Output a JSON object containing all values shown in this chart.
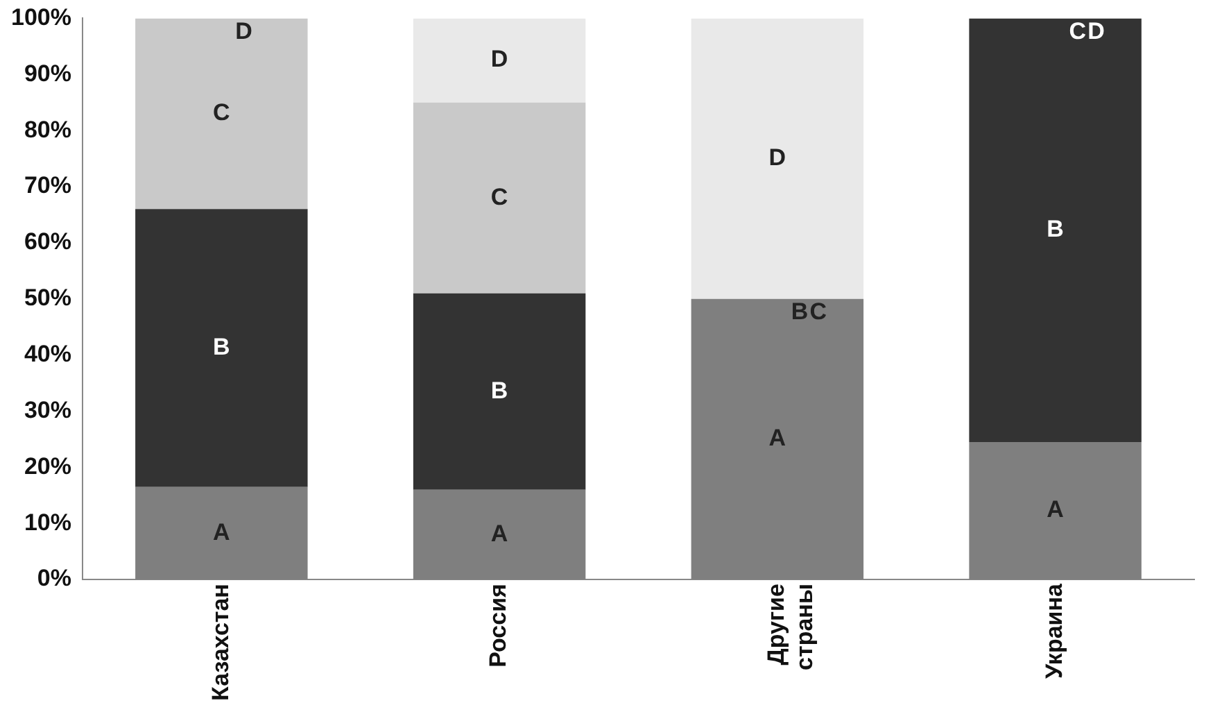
{
  "chart_data": {
    "type": "bar",
    "stacked": true,
    "categories": [
      "Казахстан",
      "Россия",
      "Другие страны",
      "Украина"
    ],
    "series": [
      {
        "name": "A",
        "color": "#7f7f7f",
        "values": [
          16.5,
          16,
          50,
          24.5
        ]
      },
      {
        "name": "B",
        "color": "#333333",
        "values": [
          49.5,
          35,
          0,
          75.5
        ]
      },
      {
        "name": "C",
        "color": "#c9c9c9",
        "values": [
          34,
          34,
          0,
          0
        ]
      },
      {
        "name": "D",
        "color": "#e9e9e9",
        "values": [
          0,
          15,
          50,
          0
        ]
      }
    ],
    "ylim": [
      0,
      100
    ],
    "yticks": [
      {
        "value": 0,
        "label": "0%"
      },
      {
        "value": 10,
        "label": "10%"
      },
      {
        "value": 20,
        "label": "20%"
      },
      {
        "value": 30,
        "label": "30%"
      },
      {
        "value": 40,
        "label": "40%"
      },
      {
        "value": 50,
        "label": "50%"
      },
      {
        "value": 60,
        "label": "60%"
      },
      {
        "value": 70,
        "label": "70%"
      },
      {
        "value": 80,
        "label": "80%"
      },
      {
        "value": 90,
        "label": "90%"
      },
      {
        "value": 100,
        "label": "100%"
      }
    ],
    "grid": false,
    "legend": false
  }
}
